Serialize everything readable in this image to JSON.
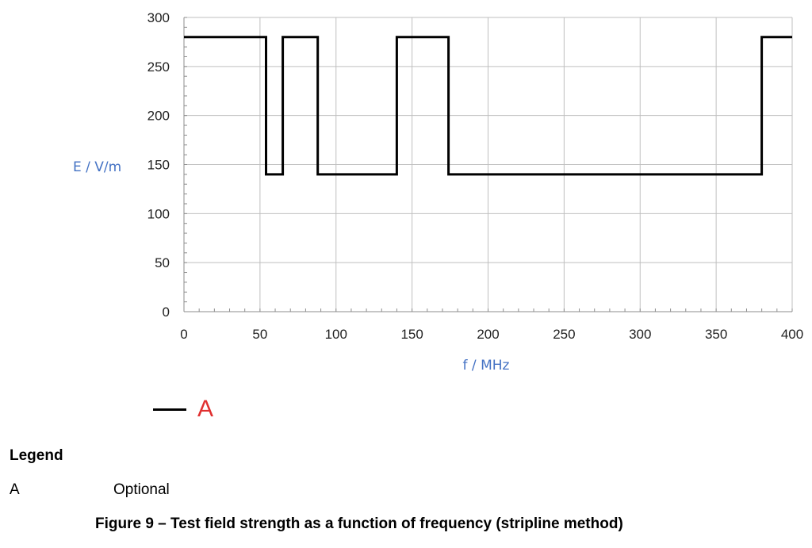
{
  "chart_data": {
    "type": "line",
    "title": "",
    "xlabel": "f / MHz",
    "ylabel": "E / V/m",
    "xlim": [
      0,
      400
    ],
    "ylim": [
      0,
      300
    ],
    "x_ticks": [
      "0",
      "50",
      "100",
      "150",
      "200",
      "250",
      "300",
      "350",
      "400"
    ],
    "y_ticks": [
      "0",
      "50",
      "100",
      "150",
      "200",
      "250",
      "300"
    ],
    "grid": true,
    "line_shape": "step",
    "series": [
      {
        "name": "A",
        "color": "#000000",
        "x": [
          0,
          54,
          54,
          65,
          65,
          88,
          88,
          140,
          140,
          174,
          174,
          380,
          380,
          400
        ],
        "y": [
          280,
          280,
          140,
          140,
          280,
          280,
          140,
          140,
          280,
          280,
          140,
          140,
          280,
          280
        ]
      }
    ],
    "legend_placement": "bottom-left"
  },
  "colors": {
    "axis_title": "#4472C4",
    "legend_label": "#E03030",
    "grid": "#BFBFBF",
    "line": "#000000"
  },
  "legend": {
    "heading": "Legend",
    "items": [
      {
        "key": "A",
        "description": "Optional"
      }
    ]
  },
  "caption": "Figure 9 – Test field strength as a function of frequency (stripline method)"
}
